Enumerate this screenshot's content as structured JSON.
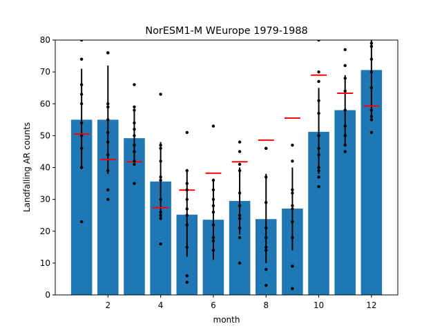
{
  "chart_data": {
    "type": "bar",
    "title": "NorESM1-M WEurope 1979-1988",
    "xlabel": "month",
    "ylabel": "Landfalling AR counts",
    "xlim": [
      0,
      13
    ],
    "ylim": [
      0,
      80
    ],
    "grid": false,
    "xticks": [
      2,
      4,
      6,
      8,
      10,
      12
    ],
    "yticks": [
      0,
      10,
      20,
      30,
      40,
      50,
      60,
      70,
      80
    ],
    "months": [
      1,
      2,
      3,
      4,
      5,
      6,
      7,
      8,
      9,
      10,
      11,
      12
    ],
    "mean_counts": [
      55.0,
      55.0,
      49.2,
      35.6,
      25.2,
      23.6,
      29.5,
      23.8,
      27.1,
      51.2,
      58.0,
      70.6
    ],
    "std_error_range": [
      [
        39.5,
        71.0
      ],
      [
        38.0,
        72.0
      ],
      [
        42.0,
        58.0
      ],
      [
        23.5,
        48.0
      ],
      [
        12.0,
        39.5
      ],
      [
        11.0,
        36.5
      ],
      [
        19.0,
        40.0
      ],
      [
        10.0,
        38.0
      ],
      [
        14.0,
        40.0
      ],
      [
        38.0,
        65.0
      ],
      [
        47.0,
        69.0
      ],
      [
        56.0,
        80.0
      ]
    ],
    "reference_values": [
      50.5,
      42.5,
      41.8,
      27.4,
      32.9,
      38.2,
      41.8,
      48.6,
      55.5,
      69.0,
      63.3,
      59.3
    ],
    "yearly_counts": [
      [
        80,
        74,
        66,
        63,
        60,
        54,
        50,
        46,
        40,
        40,
        23
      ],
      [
        76,
        76,
        60,
        59,
        55,
        51,
        48,
        44,
        39,
        33,
        30
      ],
      [
        66,
        59,
        58,
        54,
        52,
        50,
        47,
        45,
        42,
        41,
        35
      ],
      [
        63,
        47,
        46,
        42,
        37,
        36,
        30,
        26,
        25,
        24,
        16
      ],
      [
        51,
        39,
        35,
        33,
        30,
        27,
        25,
        22,
        15,
        6,
        4
      ],
      [
        53,
        36,
        33,
        30,
        28,
        26,
        22,
        18,
        17,
        14,
        14
      ],
      [
        48,
        45,
        41,
        39,
        32,
        28,
        25,
        24,
        21,
        18,
        10
      ],
      [
        46,
        46,
        37,
        29,
        21,
        18,
        15,
        14,
        8,
        3
      ],
      [
        47,
        42,
        33,
        32,
        28,
        27,
        23,
        18,
        9,
        2
      ],
      [
        80,
        70,
        67,
        61,
        57,
        50,
        46,
        44,
        40,
        39,
        37,
        34
      ],
      [
        82,
        77,
        72,
        68,
        64,
        58,
        53,
        50,
        47,
        45
      ],
      [
        82,
        79,
        78,
        74,
        70,
        65,
        58,
        56,
        55,
        51
      ]
    ],
    "colors": {
      "bar": "#1f77b4",
      "error_bar": "#000000",
      "points": "#000000",
      "reference": "#ff0000"
    }
  }
}
